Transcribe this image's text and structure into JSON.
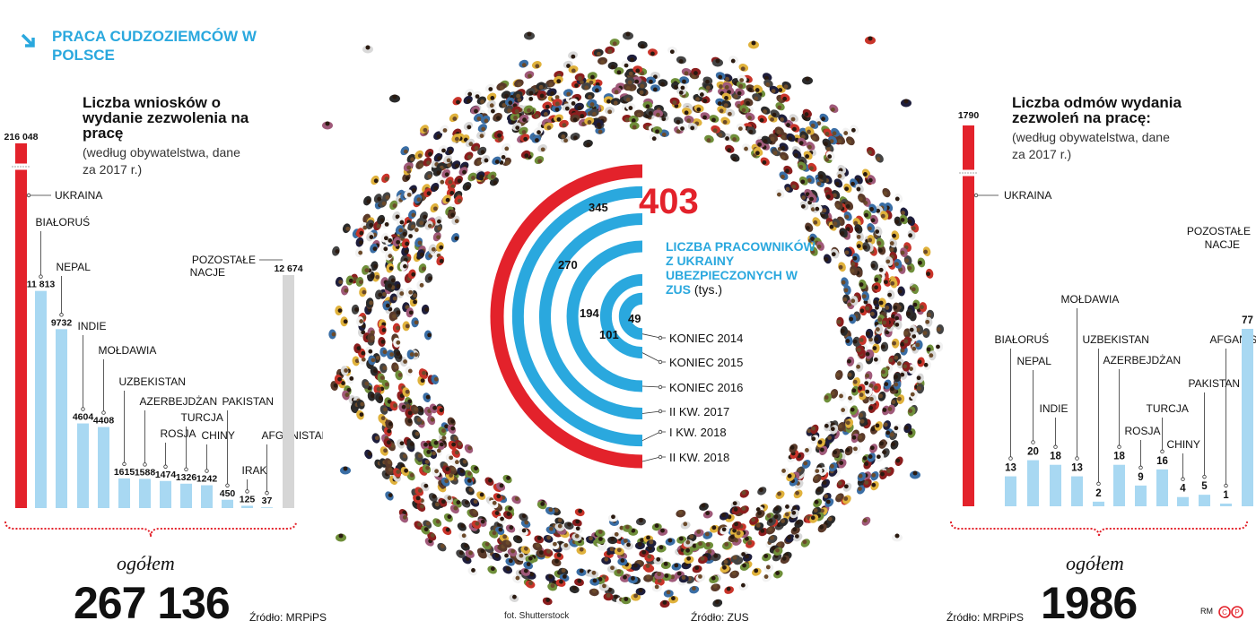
{
  "header": {
    "title": "PRACA CUDZOZIEMCÓW W POLSCE"
  },
  "left": {
    "heading": "Liczba wniosków o wydanie zezwolenia na pracę",
    "note": "(według obywatelstwa, dane za 2017 r.)",
    "total_caption": "ogółem",
    "total": "267 136",
    "source": "Źródło: MRPiPS"
  },
  "center": {
    "title": "LICZBA PRACOWNIKÓW Z UKRAINY UBEZPIECZONYCH W ZUS",
    "unit": "(tys.)",
    "photo_credit": "fot. Shutterstock",
    "source": "Źródło: ZUS"
  },
  "right": {
    "heading": "Liczba odmów wydania zezwoleń na pracę:",
    "note": "(według obywatelstwa, dane za 2017 r.)",
    "total_caption": "ogółem",
    "total": "1986",
    "source": "Źródło: MRPiPS"
  },
  "footer": {
    "initials": "RM"
  },
  "colors": {
    "red": "#e3222b",
    "blue": "#2aa8de",
    "lightblue": "#a8d8f2",
    "gray": "#d6d6d6"
  },
  "chart_data": [
    {
      "type": "bar",
      "title": "Liczba wniosków o wydanie zezwolenia na pracę",
      "categories": [
        "UKRAINA",
        "BIAŁORUŚ",
        "NEPAL",
        "INDIE",
        "MOŁDAWIA",
        "UZBEKISTAN",
        "AZERBEJDŻAN",
        "ROSJA",
        "TURCJA",
        "CHINY",
        "PAKISTAN",
        "IRAK",
        "AFGANISTAN",
        "POZOSTAŁE NACJE"
      ],
      "values": [
        216048,
        11813,
        9732,
        4604,
        4408,
        1615,
        1588,
        1474,
        1326,
        1242,
        450,
        125,
        37,
        12674
      ],
      "value_labels": [
        "216 048",
        "11 813",
        "9732",
        "4604",
        "4408",
        "1615",
        "1588",
        "1474",
        "1326",
        "1242",
        "450",
        "125",
        "37",
        "12 674"
      ],
      "broken_axis": true,
      "total": 267136
    },
    {
      "type": "bar",
      "title": "Liczba pracowników z Ukrainy ubezpieczonych w ZUS (tys.)",
      "categories": [
        "KONIEC 2014",
        "KONIEC 2015",
        "KONIEC 2016",
        "II KW. 2017",
        "I KW. 2018",
        "II KW. 2018"
      ],
      "values": [
        49,
        101,
        194,
        270,
        345,
        403
      ]
    },
    {
      "type": "bar",
      "title": "Liczba odmów wydania zezwoleń na pracę",
      "categories": [
        "UKRAINA",
        "BIAŁORUŚ",
        "NEPAL",
        "INDIE",
        "MOŁDAWIA",
        "UZBEKISTAN",
        "AZERBEJDŻAN",
        "ROSJA",
        "TURCJA",
        "CHINY",
        "PAKISTAN",
        "AFGANISTAN",
        "POZOSTAŁE NACJE"
      ],
      "values": [
        1790,
        13,
        20,
        18,
        13,
        2,
        18,
        9,
        16,
        4,
        5,
        1,
        77
      ],
      "value_labels": [
        "1790",
        "13",
        "20",
        "18",
        "13",
        "2",
        "18",
        "9",
        "16",
        "4",
        "5",
        "1",
        "77"
      ],
      "broken_axis": true,
      "total": 1986
    }
  ]
}
